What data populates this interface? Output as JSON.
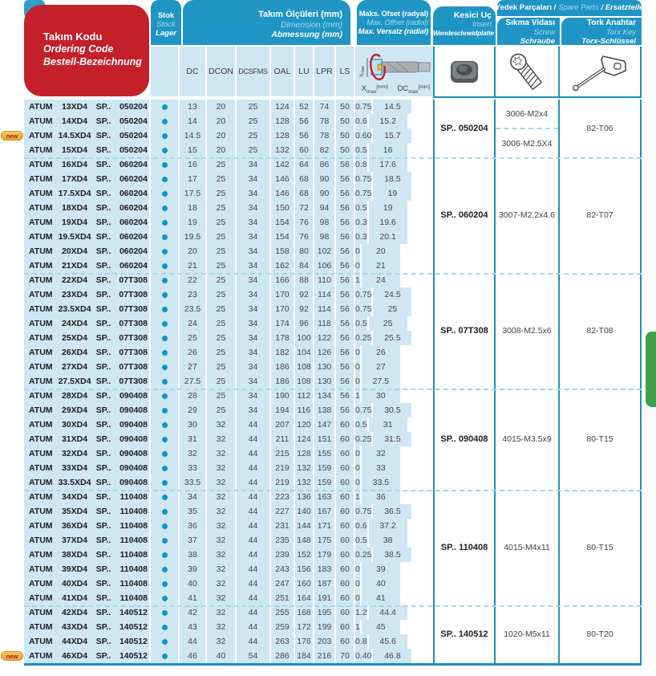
{
  "colors": {
    "header_blue": "#1f95c5",
    "row_light_blue": "#cfe6f3",
    "red_header": "#c3202a",
    "line_blue": "#1b8fc0",
    "stock_dot": "#1494c4",
    "green_tab": "#3da04a",
    "new_badge_orange": "#efa02f"
  },
  "header": {
    "code": {
      "l1": "Takım Kodu",
      "l2": "Ordering Code",
      "l3": "Bestell-Bezeichnung"
    },
    "stock": {
      "l1": "Stok",
      "l2": "Stock",
      "l3": "Lager"
    },
    "dim": {
      "l1": "Takım Ölçüleri (mm)",
      "l2": "Dimension (mm)",
      "l3": "Abmessung (mm)"
    },
    "offset": {
      "l1": "Maks. Ofset (radyal)",
      "l2": "Max. Offset (radial)",
      "l3": "Max. Versatz (radial)"
    },
    "insert": {
      "l1": "Kesici Uç",
      "l2": "Insert",
      "l3": "Wendeschneidplatte"
    },
    "spare": {
      "s1": "Yedek Parçaları /",
      "s2": "Spare Parts",
      "s3": "/ Ersatzteile"
    },
    "screw": {
      "l1": "Sıkma Vidası",
      "l2": "Screw",
      "l3": "Schraube"
    },
    "torx": {
      "l1": "Tork Anahtar",
      "l2": "Torx Key",
      "l3": "Torx-Schlüssel"
    },
    "xmax_label": {
      "base": "X",
      "sub": "max",
      "unit": "[mm]"
    },
    "dcmax_label": {
      "base": "DC",
      "sub": "max",
      "unit": "[mm]"
    }
  },
  "table": {
    "dim_columns": [
      "DC",
      "DCON",
      "DCSFMS",
      "OAL",
      "LU",
      "LPR",
      "LS"
    ],
    "brand": "ATUM",
    "sp": "SP..",
    "new_badge": "new",
    "rows": [
      {
        "size": "13XD4",
        "code": "050204",
        "dc": "13",
        "dcon": "20",
        "dcsfms": "25",
        "oal": "124",
        "lu": "52",
        "lpr": "74",
        "ls": "50",
        "xmax": "0.75",
        "dcmax": "14.5",
        "new": false
      },
      {
        "size": "14XD4",
        "code": "050204",
        "dc": "14",
        "dcon": "20",
        "dcsfms": "25",
        "oal": "128",
        "lu": "56",
        "lpr": "78",
        "ls": "50",
        "xmax": "0.6",
        "dcmax": "15.2",
        "new": false
      },
      {
        "size": "14.5XD4",
        "code": "050204",
        "dc": "14.5",
        "dcon": "20",
        "dcsfms": "25",
        "oal": "128",
        "lu": "56",
        "lpr": "78",
        "ls": "50",
        "xmax": "0.60",
        "dcmax": "15.7",
        "new": true
      },
      {
        "size": "15XD4",
        "code": "050204",
        "dc": "15",
        "dcon": "20",
        "dcsfms": "25",
        "oal": "132",
        "lu": "60",
        "lpr": "82",
        "ls": "50",
        "xmax": "0.5",
        "dcmax": "16",
        "new": false
      },
      {
        "size": "16XD4",
        "code": "060204",
        "dc": "16",
        "dcon": "25",
        "dcsfms": "34",
        "oal": "142",
        "lu": "64",
        "lpr": "86",
        "ls": "56",
        "xmax": "0.8",
        "dcmax": "17.6",
        "new": false
      },
      {
        "size": "17XD4",
        "code": "060204",
        "dc": "17",
        "dcon": "25",
        "dcsfms": "34",
        "oal": "146",
        "lu": "68",
        "lpr": "90",
        "ls": "56",
        "xmax": "0.75",
        "dcmax": "18.5",
        "new": false
      },
      {
        "size": "17.5XD4",
        "code": "060204",
        "dc": "17.5",
        "dcon": "25",
        "dcsfms": "34",
        "oal": "146",
        "lu": "68",
        "lpr": "90",
        "ls": "56",
        "xmax": "0.75",
        "dcmax": "19",
        "new": false
      },
      {
        "size": "18XD4",
        "code": "060204",
        "dc": "18",
        "dcon": "25",
        "dcsfms": "34",
        "oal": "150",
        "lu": "72",
        "lpr": "94",
        "ls": "56",
        "xmax": "0.5",
        "dcmax": "19",
        "new": false
      },
      {
        "size": "19XD4",
        "code": "060204",
        "dc": "19",
        "dcon": "25",
        "dcsfms": "34",
        "oal": "154",
        "lu": "76",
        "lpr": "98",
        "ls": "56",
        "xmax": "0.3",
        "dcmax": "19.6",
        "new": false
      },
      {
        "size": "19.5XD4",
        "code": "060204",
        "dc": "19.5",
        "dcon": "25",
        "dcsfms": "34",
        "oal": "154",
        "lu": "76",
        "lpr": "98",
        "ls": "56",
        "xmax": "0.3",
        "dcmax": "20.1",
        "new": false
      },
      {
        "size": "20XD4",
        "code": "060204",
        "dc": "20",
        "dcon": "25",
        "dcsfms": "34",
        "oal": "158",
        "lu": "80",
        "lpr": "102",
        "ls": "56",
        "xmax": "0",
        "dcmax": "20",
        "new": false
      },
      {
        "size": "21XD4",
        "code": "060204",
        "dc": "21",
        "dcon": "25",
        "dcsfms": "34",
        "oal": "162",
        "lu": "84",
        "lpr": "106",
        "ls": "56",
        "xmax": "0",
        "dcmax": "21",
        "new": false
      },
      {
        "size": "22XD4",
        "code": "07T308",
        "dc": "22",
        "dcon": "25",
        "dcsfms": "34",
        "oal": "166",
        "lu": "88",
        "lpr": "110",
        "ls": "56",
        "xmax": "1",
        "dcmax": "24",
        "new": false
      },
      {
        "size": "23XD4",
        "code": "07T308",
        "dc": "23",
        "dcon": "25",
        "dcsfms": "34",
        "oal": "170",
        "lu": "92",
        "lpr": "114",
        "ls": "56",
        "xmax": "0.75",
        "dcmax": "24.5",
        "new": false
      },
      {
        "size": "23.5XD4",
        "code": "07T308",
        "dc": "23.5",
        "dcon": "25",
        "dcsfms": "34",
        "oal": "170",
        "lu": "92",
        "lpr": "114",
        "ls": "56",
        "xmax": "0.75",
        "dcmax": "25",
        "new": false
      },
      {
        "size": "24XD4",
        "code": "07T308",
        "dc": "24",
        "dcon": "25",
        "dcsfms": "34",
        "oal": "174",
        "lu": "96",
        "lpr": "118",
        "ls": "56",
        "xmax": "0.5",
        "dcmax": "25",
        "new": false
      },
      {
        "size": "25XD4",
        "code": "07T308",
        "dc": "25",
        "dcon": "25",
        "dcsfms": "34",
        "oal": "178",
        "lu": "100",
        "lpr": "122",
        "ls": "56",
        "xmax": "0.25",
        "dcmax": "25.5",
        "new": false
      },
      {
        "size": "26XD4",
        "code": "07T308",
        "dc": "26",
        "dcon": "25",
        "dcsfms": "34",
        "oal": "182",
        "lu": "104",
        "lpr": "126",
        "ls": "56",
        "xmax": "0",
        "dcmax": "26",
        "new": false
      },
      {
        "size": "27XD4",
        "code": "07T308",
        "dc": "27",
        "dcon": "25",
        "dcsfms": "34",
        "oal": "186",
        "lu": "108",
        "lpr": "130",
        "ls": "56",
        "xmax": "0",
        "dcmax": "27",
        "new": false
      },
      {
        "size": "27.5XD4",
        "code": "07T308",
        "dc": "27.5",
        "dcon": "25",
        "dcsfms": "34",
        "oal": "186",
        "lu": "108",
        "lpr": "130",
        "ls": "56",
        "xmax": "0",
        "dcmax": "27.5",
        "new": false
      },
      {
        "size": "28XD4",
        "code": "090408",
        "dc": "28",
        "dcon": "25",
        "dcsfms": "34",
        "oal": "190",
        "lu": "112",
        "lpr": "134",
        "ls": "56",
        "xmax": "1",
        "dcmax": "30",
        "new": false
      },
      {
        "size": "29XD4",
        "code": "090408",
        "dc": "29",
        "dcon": "25",
        "dcsfms": "34",
        "oal": "194",
        "lu": "116",
        "lpr": "138",
        "ls": "56",
        "xmax": "0.75",
        "dcmax": "30.5",
        "new": false
      },
      {
        "size": "30XD4",
        "code": "090408",
        "dc": "30",
        "dcon": "32",
        "dcsfms": "44",
        "oal": "207",
        "lu": "120",
        "lpr": "147",
        "ls": "60",
        "xmax": "0.5",
        "dcmax": "31",
        "new": false
      },
      {
        "size": "31XD4",
        "code": "090408",
        "dc": "31",
        "dcon": "32",
        "dcsfms": "44",
        "oal": "211",
        "lu": "124",
        "lpr": "151",
        "ls": "60",
        "xmax": "0.25",
        "dcmax": "31.5",
        "new": false
      },
      {
        "size": "32XD4",
        "code": "090408",
        "dc": "32",
        "dcon": "32",
        "dcsfms": "44",
        "oal": "215",
        "lu": "128",
        "lpr": "155",
        "ls": "60",
        "xmax": "0",
        "dcmax": "32",
        "new": false
      },
      {
        "size": "33XD4",
        "code": "090408",
        "dc": "33",
        "dcon": "32",
        "dcsfms": "44",
        "oal": "219",
        "lu": "132",
        "lpr": "159",
        "ls": "60",
        "xmax": "0",
        "dcmax": "33",
        "new": false
      },
      {
        "size": "33.5XD4",
        "code": "090408",
        "dc": "33.5",
        "dcon": "32",
        "dcsfms": "44",
        "oal": "219",
        "lu": "132",
        "lpr": "159",
        "ls": "60",
        "xmax": "0",
        "dcmax": "33.5",
        "new": false
      },
      {
        "size": "34XD4",
        "code": "110408",
        "dc": "34",
        "dcon": "32",
        "dcsfms": "44",
        "oal": "223",
        "lu": "136",
        "lpr": "163",
        "ls": "60",
        "xmax": "1",
        "dcmax": "36",
        "new": false
      },
      {
        "size": "35XD4",
        "code": "110408",
        "dc": "35",
        "dcon": "32",
        "dcsfms": "44",
        "oal": "227",
        "lu": "140",
        "lpr": "167",
        "ls": "60",
        "xmax": "0.75",
        "dcmax": "36.5",
        "new": false
      },
      {
        "size": "36XD4",
        "code": "110408",
        "dc": "36",
        "dcon": "32",
        "dcsfms": "44",
        "oal": "231",
        "lu": "144",
        "lpr": "171",
        "ls": "60",
        "xmax": "0.6",
        "dcmax": "37.2",
        "new": false
      },
      {
        "size": "37XD4",
        "code": "110408",
        "dc": "37",
        "dcon": "32",
        "dcsfms": "44",
        "oal": "235",
        "lu": "148",
        "lpr": "175",
        "ls": "60",
        "xmax": "0.5",
        "dcmax": "38",
        "new": false
      },
      {
        "size": "38XD4",
        "code": "110408",
        "dc": "38",
        "dcon": "32",
        "dcsfms": "44",
        "oal": "239",
        "lu": "152",
        "lpr": "179",
        "ls": "60",
        "xmax": "0.25",
        "dcmax": "38.5",
        "new": false
      },
      {
        "size": "39XD4",
        "code": "110408",
        "dc": "39",
        "dcon": "32",
        "dcsfms": "44",
        "oal": "243",
        "lu": "156",
        "lpr": "183",
        "ls": "60",
        "xmax": "0",
        "dcmax": "39",
        "new": false
      },
      {
        "size": "40XD4",
        "code": "110408",
        "dc": "40",
        "dcon": "32",
        "dcsfms": "44",
        "oal": "247",
        "lu": "160",
        "lpr": "187",
        "ls": "60",
        "xmax": "0",
        "dcmax": "40",
        "new": false
      },
      {
        "size": "41XD4",
        "code": "110408",
        "dc": "41",
        "dcon": "32",
        "dcsfms": "44",
        "oal": "251",
        "lu": "164",
        "lpr": "191",
        "ls": "60",
        "xmax": "0",
        "dcmax": "41",
        "new": false
      },
      {
        "size": "42XD4",
        "code": "140512",
        "dc": "42",
        "dcon": "32",
        "dcsfms": "44",
        "oal": "255",
        "lu": "168",
        "lpr": "195",
        "ls": "60",
        "xmax": "1.2",
        "dcmax": "44.4",
        "new": false
      },
      {
        "size": "43XD4",
        "code": "140512",
        "dc": "43",
        "dcon": "32",
        "dcsfms": "44",
        "oal": "259",
        "lu": "172",
        "lpr": "199",
        "ls": "60",
        "xmax": "1",
        "dcmax": "45",
        "new": false
      },
      {
        "size": "44XD4",
        "code": "140512",
        "dc": "44",
        "dcon": "32",
        "dcsfms": "44",
        "oal": "263",
        "lu": "176",
        "lpr": "203",
        "ls": "60",
        "xmax": "0.8",
        "dcmax": "45.6",
        "new": false
      },
      {
        "size": "46XD4",
        "code": "140512",
        "dc": "46",
        "dcon": "40",
        "dcsfms": "54",
        "oal": "286",
        "lu": "184",
        "lpr": "216",
        "ls": "70",
        "xmax": "0.40",
        "dcmax": "46.8",
        "new": true
      }
    ],
    "groups": [
      {
        "rows": 4,
        "insert": "SP.. 050204",
        "screws": [
          "3006-M2x4",
          "3006-M2.5X4"
        ],
        "torx": "82-T06"
      },
      {
        "rows": 8,
        "insert": "SP.. 060204",
        "screws": [
          "3007-M2.2x4.6"
        ],
        "torx": "82-T07"
      },
      {
        "rows": 8,
        "insert": "SP.. 07T308",
        "screws": [
          "3008-M2.5x6"
        ],
        "torx": "82-T08"
      },
      {
        "rows": 7,
        "insert": "SP.. 090408",
        "screws": [
          "4015-M3.5x9"
        ],
        "torx": "80-T15"
      },
      {
        "rows": 8,
        "insert": "SP.. 110408",
        "screws": [
          "4015-M4x11"
        ],
        "torx": "80-T15"
      },
      {
        "rows": 4,
        "insert": "SP.. 140512",
        "screws": [
          "1020-M5x11"
        ],
        "torx": "80-T20"
      }
    ]
  }
}
